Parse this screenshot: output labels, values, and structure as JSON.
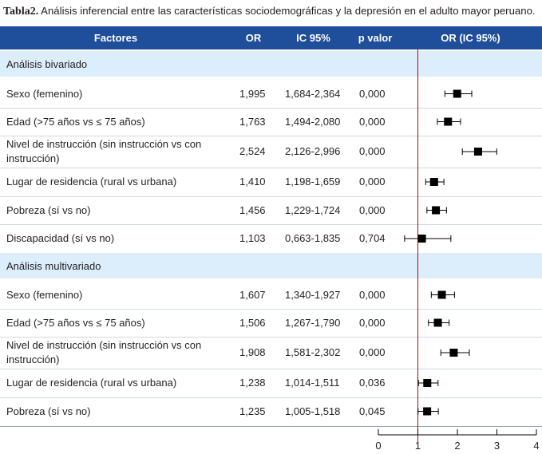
{
  "title": {
    "label": "Tabla2.",
    "text": "Análisis inferencial entre las características sociodemográficas y la depresión en el adulto mayor peruano."
  },
  "headers": {
    "factors": "Factores",
    "or": "OR",
    "ic": "IC 95%",
    "p": "p valor",
    "plot": "OR (IC 95%)"
  },
  "sections": [
    {
      "name": "Análisis bivariado",
      "rows": [
        {
          "factor": "Sexo (femenino)",
          "or": "1,995",
          "ic": "1,684-2,364",
          "p": "0,000"
        },
        {
          "factor": "Edad (>75 años vs ≤ 75 años)",
          "or": "1,763",
          "ic": "1,494-2,080",
          "p": "0,000"
        },
        {
          "factor": "Nivel de instrucción (sin instrucción vs con instrucción)",
          "or": "2,524",
          "ic": "2,126-2,996",
          "p": "0,000"
        },
        {
          "factor": "Lugar de residencia (rural vs urbana)",
          "or": "1,410",
          "ic": "1,198-1,659",
          "p": "0,000"
        },
        {
          "factor": "Pobreza (sí vs no)",
          "or": "1,456",
          "ic": "1,229-1,724",
          "p": "0,000"
        },
        {
          "factor": "Discapacidad (sí vs no)",
          "or": "1,103",
          "ic": "0,663-1,835",
          "p": "0,704"
        }
      ]
    },
    {
      "name": "Análisis multivariado",
      "rows": [
        {
          "factor": "Sexo (femenino)",
          "or": "1,607",
          "ic": "1,340-1,927",
          "p": "0,000"
        },
        {
          "factor": "Edad (>75 años vs ≤ 75 años)",
          "or": "1,506",
          "ic": "1,267-1,790",
          "p": "0,000"
        },
        {
          "factor": "Nivel de instrucción (sin instrucción vs con instrucción)",
          "or": "1,908",
          "ic": "1,581-2,302",
          "p": "0,000"
        },
        {
          "factor": "Lugar de residencia (rural vs urbana)",
          "or": "1,238",
          "ic": "1,014-1,511",
          "p": "0,036"
        },
        {
          "factor": "Pobreza (sí vs no)",
          "or": "1,235",
          "ic": "1,005-1,518",
          "p": "0,045"
        }
      ]
    }
  ],
  "colors": {
    "header": "#1f4e9b",
    "section": "#dceefb",
    "reference_line": "#c00000",
    "marker": "#000000"
  },
  "chart_data": {
    "type": "scatter",
    "title": "OR (IC 95%)",
    "xlim": [
      0,
      4
    ],
    "xticks": [
      "0",
      "1",
      "2",
      "3",
      "4"
    ],
    "reference_value": 1,
    "series": [
      {
        "name": "Análisis bivariado",
        "points": [
          {
            "or": 1.995,
            "low": 1.684,
            "high": 2.364
          },
          {
            "or": 1.763,
            "low": 1.494,
            "high": 2.08
          },
          {
            "or": 2.524,
            "low": 2.126,
            "high": 2.996
          },
          {
            "or": 1.41,
            "low": 1.198,
            "high": 1.659
          },
          {
            "or": 1.456,
            "low": 1.229,
            "high": 1.724
          },
          {
            "or": 1.103,
            "low": 0.663,
            "high": 1.835
          }
        ]
      },
      {
        "name": "Análisis multivariado",
        "points": [
          {
            "or": 1.607,
            "low": 1.34,
            "high": 1.927
          },
          {
            "or": 1.506,
            "low": 1.267,
            "high": 1.79
          },
          {
            "or": 1.908,
            "low": 1.581,
            "high": 2.302
          },
          {
            "or": 1.238,
            "low": 1.014,
            "high": 1.511
          },
          {
            "or": 1.235,
            "low": 1.005,
            "high": 1.518
          }
        ]
      }
    ]
  }
}
